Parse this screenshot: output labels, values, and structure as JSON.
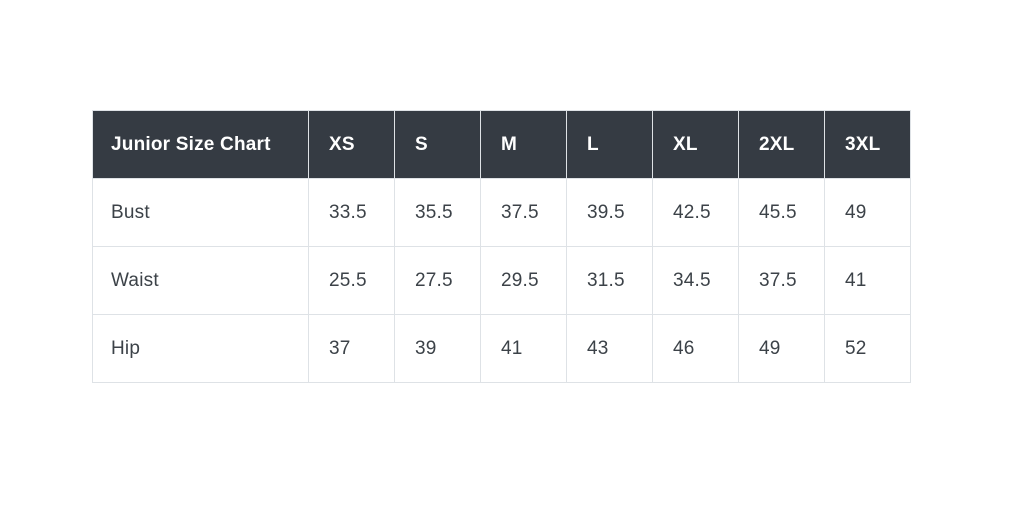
{
  "table": {
    "title": "Junior Size Chart",
    "columns": [
      "XS",
      "S",
      "M",
      "L",
      "XL",
      "2XL",
      "3XL"
    ],
    "rows": [
      {
        "label": "Bust",
        "values": [
          "33.5",
          "35.5",
          "37.5",
          "39.5",
          "42.5",
          "45.5",
          "49"
        ]
      },
      {
        "label": "Waist",
        "values": [
          "25.5",
          "27.5",
          "29.5",
          "31.5",
          "34.5",
          "37.5",
          "41"
        ]
      },
      {
        "label": "Hip",
        "values": [
          "37",
          "39",
          "41",
          "43",
          "46",
          "49",
          "52"
        ]
      }
    ]
  },
  "colors": {
    "header_bg": "#353b43",
    "header_text": "#ffffff",
    "body_text": "#3c4248",
    "border": "#dee2e6",
    "page_bg": "#ffffff"
  },
  "chart_data": {
    "type": "table",
    "title": "Junior Size Chart",
    "categories": [
      "XS",
      "S",
      "M",
      "L",
      "XL",
      "2XL",
      "3XL"
    ],
    "series": [
      {
        "name": "Bust",
        "values": [
          33.5,
          35.5,
          37.5,
          39.5,
          42.5,
          45.5,
          49
        ]
      },
      {
        "name": "Waist",
        "values": [
          25.5,
          27.5,
          29.5,
          31.5,
          34.5,
          37.5,
          41
        ]
      },
      {
        "name": "Hip",
        "values": [
          37,
          39,
          41,
          43,
          46,
          49,
          52
        ]
      }
    ]
  }
}
